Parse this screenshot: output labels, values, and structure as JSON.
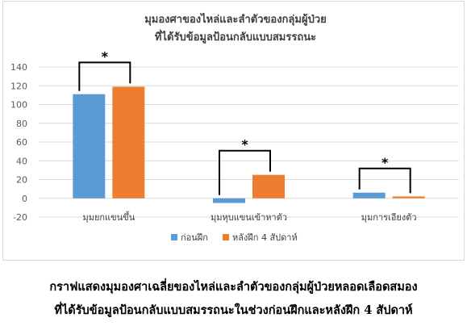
{
  "chart_data": {
    "type": "bar",
    "title_lines": [
      "มุมองศาของไหล่และลำตัวของกลุ่มผู้ป่วย",
      "ที่ได้รับข้อมูลป้อนกลับแบบสมรรถนะ"
    ],
    "categories": [
      "มุมยกแขนขึ้น",
      "มุมหุบแขนเข้าหาตัว",
      "มุมการเอียงตัว"
    ],
    "series": [
      {
        "name": "ก่อนฝึก",
        "values": [
          111,
          -5,
          6
        ],
        "color": "#5b9bd5"
      },
      {
        "name": "หลังฝึก 4 สัปดาห์",
        "values": [
          119,
          25,
          2
        ],
        "color": "#ed7d31"
      }
    ],
    "ylim": [
      -20,
      140
    ],
    "yticks": [
      -20,
      0,
      20,
      40,
      60,
      80,
      100,
      120,
      140
    ],
    "significance_marker": "*",
    "gridlines": true,
    "legend_position": "bottom"
  },
  "caption": {
    "line1": "กราฟแสดงมุมองศาเฉลี่ยของไหล่และลำตัวของกลุ่มผู้ป่วยหลอดเลือดสมอง",
    "line2": "ที่ได้รับข้อมูลป้อนกลับแบบสมรรถนะในช่วงก่อนฝึกและหลังฝึก 4 สัปดาห์"
  }
}
